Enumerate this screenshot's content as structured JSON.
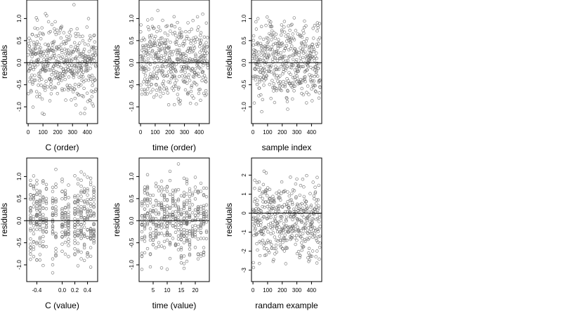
{
  "chart_data": [
    {
      "type": "scatter",
      "xlabel": "C (order)",
      "ylabel": "residuals",
      "xlim": [
        -10,
        470
      ],
      "ylim": [
        -1.38,
        1.42
      ],
      "xticks": [
        0,
        100,
        200,
        300,
        400
      ],
      "xtick_labels": [
        "0",
        "100",
        "200",
        "300",
        "400"
      ],
      "yticks": [
        -1.0,
        -0.5,
        0.0,
        0.5,
        1.0
      ],
      "ytick_labels": [
        "-1.0",
        "-0.5",
        "0.0",
        "0.5",
        "1.0"
      ],
      "hline": 0,
      "points": {
        "kind": "index",
        "n": 460,
        "min": -1.3,
        "max": 1.35,
        "center": 0.0
      }
    },
    {
      "type": "scatter",
      "xlabel": "time (order)",
      "ylabel": "residuals",
      "xlim": [
        -10,
        470
      ],
      "ylim": [
        -1.38,
        1.42
      ],
      "xticks": [
        0,
        100,
        200,
        300,
        400
      ],
      "xtick_labels": [
        "0",
        "100",
        "200",
        "300",
        "400"
      ],
      "yticks": [
        -1.0,
        -0.5,
        0.0,
        0.5,
        1.0
      ],
      "ytick_labels": [
        "-1.0",
        "-0.5",
        "0.0",
        "0.5",
        "1.0"
      ],
      "hline": 0,
      "points": {
        "kind": "index",
        "n": 460,
        "min": -1.3,
        "max": 1.35,
        "center": 0.0
      }
    },
    {
      "type": "scatter",
      "xlabel": "sample index",
      "ylabel": "residuals",
      "xlim": [
        -10,
        470
      ],
      "ylim": [
        -1.38,
        1.42
      ],
      "xticks": [
        0,
        100,
        200,
        300,
        400
      ],
      "xtick_labels": [
        "0",
        "100",
        "200",
        "300",
        "400"
      ],
      "yticks": [
        -1.0,
        -0.5,
        0.0,
        0.5,
        1.0
      ],
      "ytick_labels": [
        "-1.0",
        "-0.5",
        "0.0",
        "0.5",
        "1.0"
      ],
      "hline": 0,
      "points": {
        "kind": "index",
        "n": 460,
        "min": -1.3,
        "max": 1.35,
        "center": 0.0
      }
    },
    {
      "type": "scatter",
      "xlabel": "C (value)",
      "ylabel": "residuals",
      "xlim": [
        -0.56,
        0.56
      ],
      "ylim": [
        -1.38,
        1.42
      ],
      "xticks": [
        -0.4,
        0.0,
        0.2,
        0.4
      ],
      "xtick_labels": [
        "-0.4",
        "0.0",
        "0.2",
        "0.4"
      ],
      "yticks": [
        -1.0,
        -0.5,
        0.0,
        0.5,
        1.0
      ],
      "ytick_labels": [
        "-1.0",
        "-0.5",
        "0.0",
        "0.5",
        "1.0"
      ],
      "hline": 0,
      "points": {
        "kind": "discrete",
        "n": 460,
        "min": -1.3,
        "max": 1.35,
        "center": 0.0,
        "x_values": [
          -0.5,
          -0.45,
          -0.4,
          -0.35,
          -0.3,
          -0.25,
          -0.15,
          -0.1,
          0.0,
          0.05,
          0.1,
          0.2,
          0.25,
          0.3,
          0.35,
          0.4,
          0.45,
          0.5
        ]
      }
    },
    {
      "type": "scatter",
      "xlabel": "time (value)",
      "ylabel": "residuals",
      "xlim": [
        0,
        25
      ],
      "ylim": [
        -1.38,
        1.42
      ],
      "xticks": [
        5,
        10,
        15,
        20
      ],
      "xtick_labels": [
        "5",
        "10",
        "15",
        "20"
      ],
      "yticks": [
        -1.0,
        -0.5,
        0.0,
        0.5,
        1.0
      ],
      "ytick_labels": [
        "-1.0",
        "-0.5",
        "0.0",
        "0.5",
        "1.0"
      ],
      "hline": 0,
      "points": {
        "kind": "discrete",
        "n": 460,
        "min": -1.3,
        "max": 1.35,
        "center": 0.0,
        "x_values": [
          1,
          2,
          3,
          4,
          5,
          6,
          7,
          8,
          9,
          10,
          11,
          12,
          13,
          14,
          15,
          16,
          17,
          18,
          19,
          20,
          21,
          22,
          23,
          24
        ]
      }
    },
    {
      "type": "scatter",
      "xlabel": "randam example",
      "ylabel": "residuals",
      "xlim": [
        -10,
        470
      ],
      "ylim": [
        -3.6,
        2.9
      ],
      "xticks": [
        0,
        100,
        200,
        300,
        400
      ],
      "xtick_labels": [
        "0",
        "100",
        "200",
        "300",
        "400"
      ],
      "yticks": [
        -3,
        -2,
        -1,
        0,
        1,
        2
      ],
      "ytick_labels": [
        "-3",
        "-2",
        "-1",
        "0",
        "1",
        "2"
      ],
      "hline": 0,
      "points": {
        "kind": "index",
        "n": 460,
        "min": -3.3,
        "max": 2.6,
        "center": 0.0
      }
    }
  ]
}
